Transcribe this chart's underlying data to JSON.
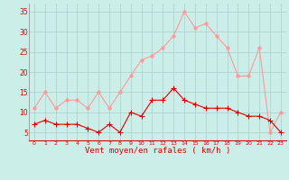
{
  "hours": [
    0,
    1,
    2,
    3,
    4,
    5,
    6,
    7,
    8,
    9,
    10,
    11,
    12,
    13,
    14,
    15,
    16,
    17,
    18,
    19,
    20,
    21,
    22,
    23
  ],
  "avg_wind": [
    7,
    8,
    7,
    7,
    7,
    6,
    5,
    7,
    5,
    10,
    9,
    13,
    13,
    16,
    13,
    12,
    11,
    11,
    11,
    10,
    9,
    9,
    8,
    5
  ],
  "gust_wind": [
    11,
    15,
    11,
    13,
    13,
    11,
    15,
    11,
    15,
    19,
    23,
    24,
    26,
    29,
    35,
    31,
    32,
    29,
    26,
    19,
    19,
    26,
    5,
    10
  ],
  "avg_color": "#dd0000",
  "gust_color": "#ff9999",
  "bg_color": "#cceee8",
  "grid_color": "#aacccc",
  "xlabel": "Vent moyen/en rafales ( km/h )",
  "ylim": [
    3,
    37
  ],
  "yticks": [
    5,
    10,
    15,
    20,
    25,
    30,
    35
  ],
  "marker_size": 2.5,
  "linewidth": 0.8
}
